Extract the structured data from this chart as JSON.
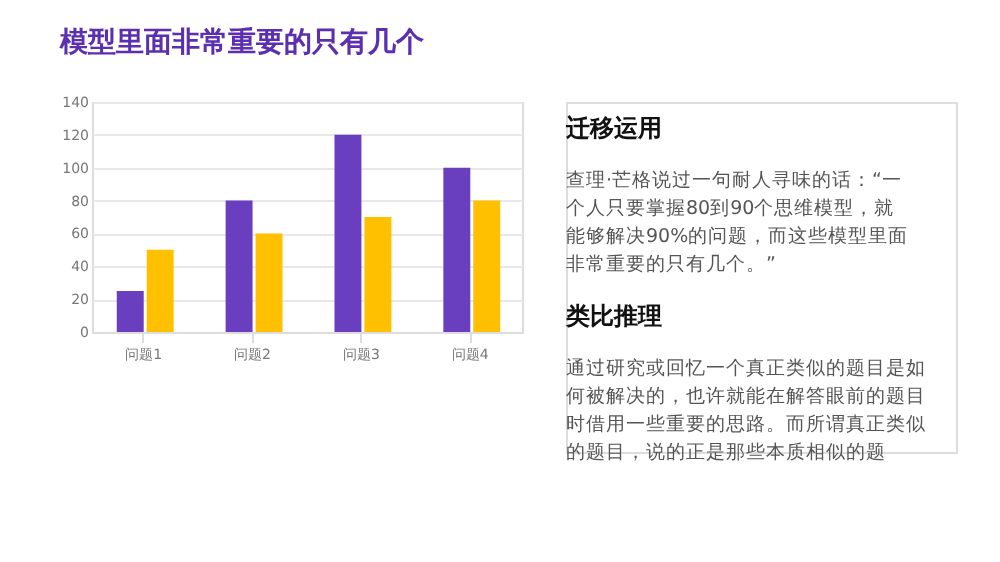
{
  "chart_data": {
    "type": "bar",
    "title": "模型里面非常重要的只有几个",
    "categories": [
      "问题1",
      "问题2",
      "问题3",
      "问题4"
    ],
    "series": [
      {
        "color": "#6a3fbf",
        "values": [
          25,
          80,
          120,
          100
        ]
      },
      {
        "color": "#ffc000",
        "values": [
          50,
          60,
          70,
          80
        ]
      }
    ],
    "ylim": [
      0,
      140
    ],
    "yticks": [
      0,
      20,
      40,
      60,
      80,
      100,
      120,
      140
    ],
    "grid": "y",
    "legend": false,
    "annotations": [
      "迁移运用",
      "查理·芒格说过一句耐人寻味的话：“一个人只要掌握80到90个思维模型，就能够解决90%的问题，而这些模型里面非常重要的只有几个。”",
      "类比推理",
      "通过研究或回忆一个真正类似的题目是如何被解决的，也许就能在解答眼前的题目时借用一些重要的思路。而所谓真正类似的题目，说的正是那些本质相似的题"
    ]
  }
}
